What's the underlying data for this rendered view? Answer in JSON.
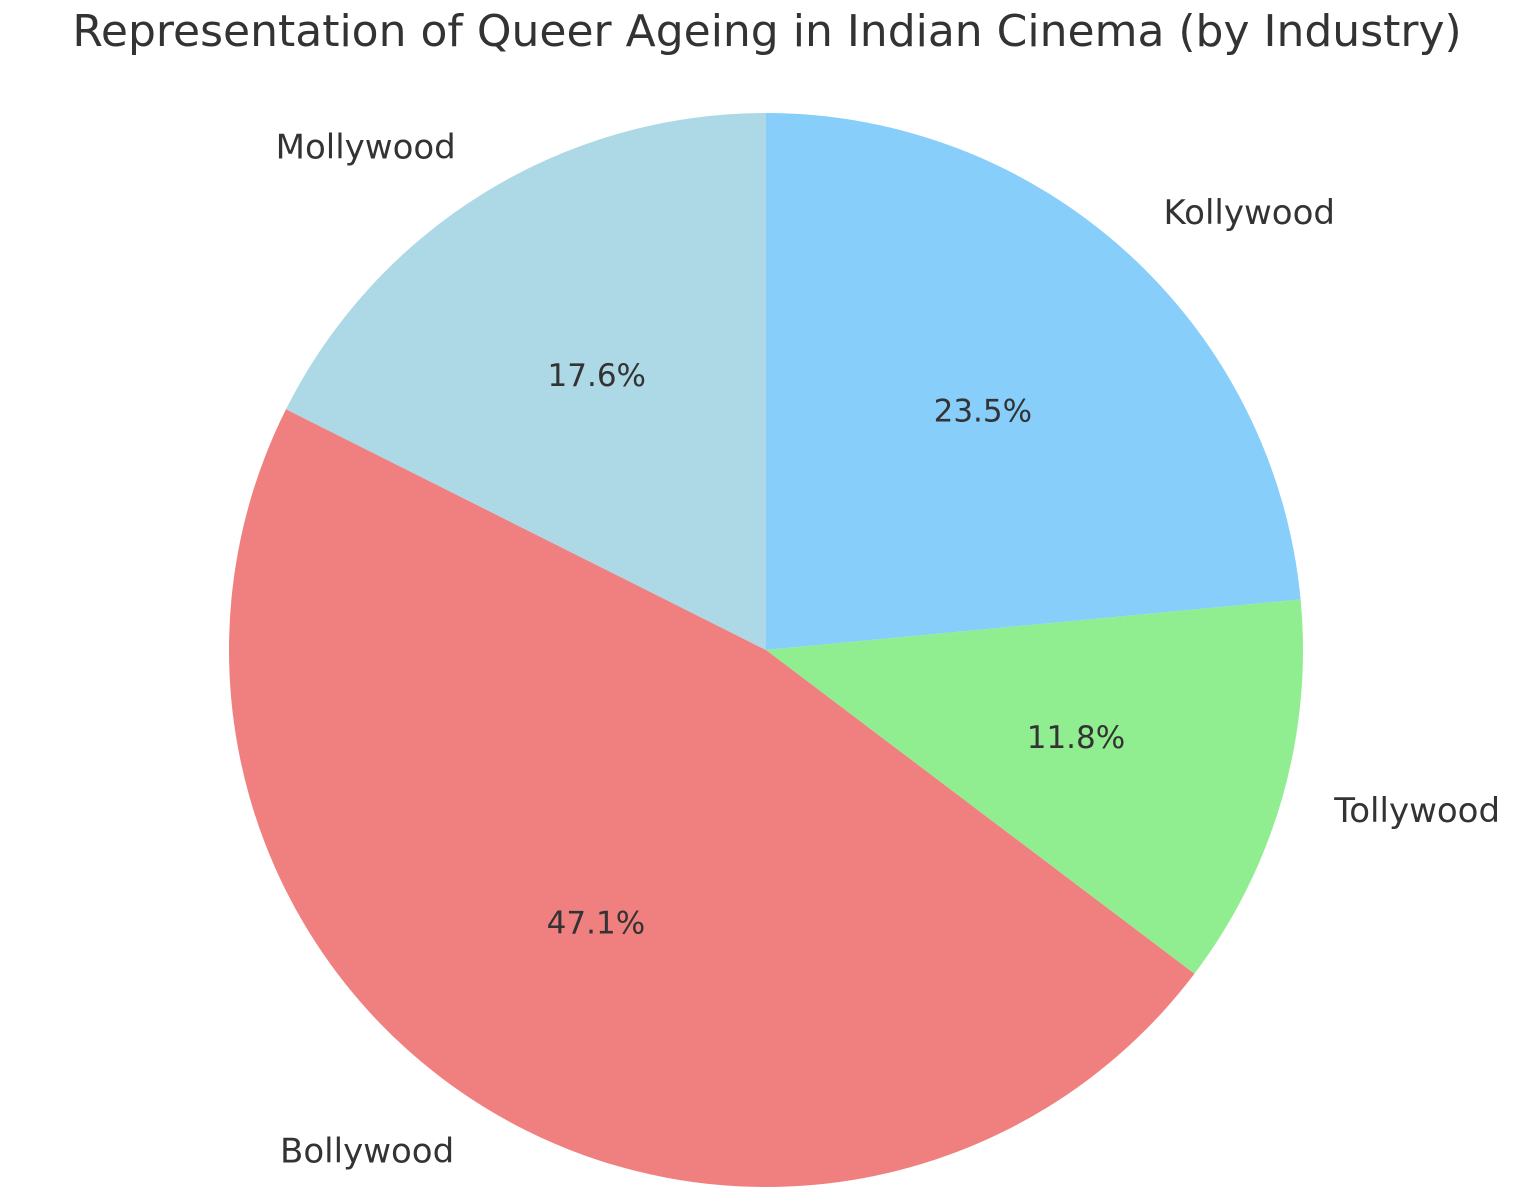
{
  "chart_data": {
    "type": "pie",
    "title": "Representation of Queer Ageing in Indian Cinema (by Industry)",
    "start_angle_deg": 90,
    "direction": "clockwise",
    "slices": [
      {
        "label": "Kollywood",
        "value": 23.5,
        "pct_label": "23.5%",
        "color": "#87CEFA"
      },
      {
        "label": "Tollywood",
        "value": 11.8,
        "pct_label": "11.8%",
        "color": "#90EE90"
      },
      {
        "label": "Bollywood",
        "value": 47.1,
        "pct_label": "47.1%",
        "color": "#F08080"
      },
      {
        "label": "Mollywood",
        "value": 17.6,
        "pct_label": "17.6%",
        "color": "#ADD8E6"
      }
    ],
    "legend": "none"
  }
}
